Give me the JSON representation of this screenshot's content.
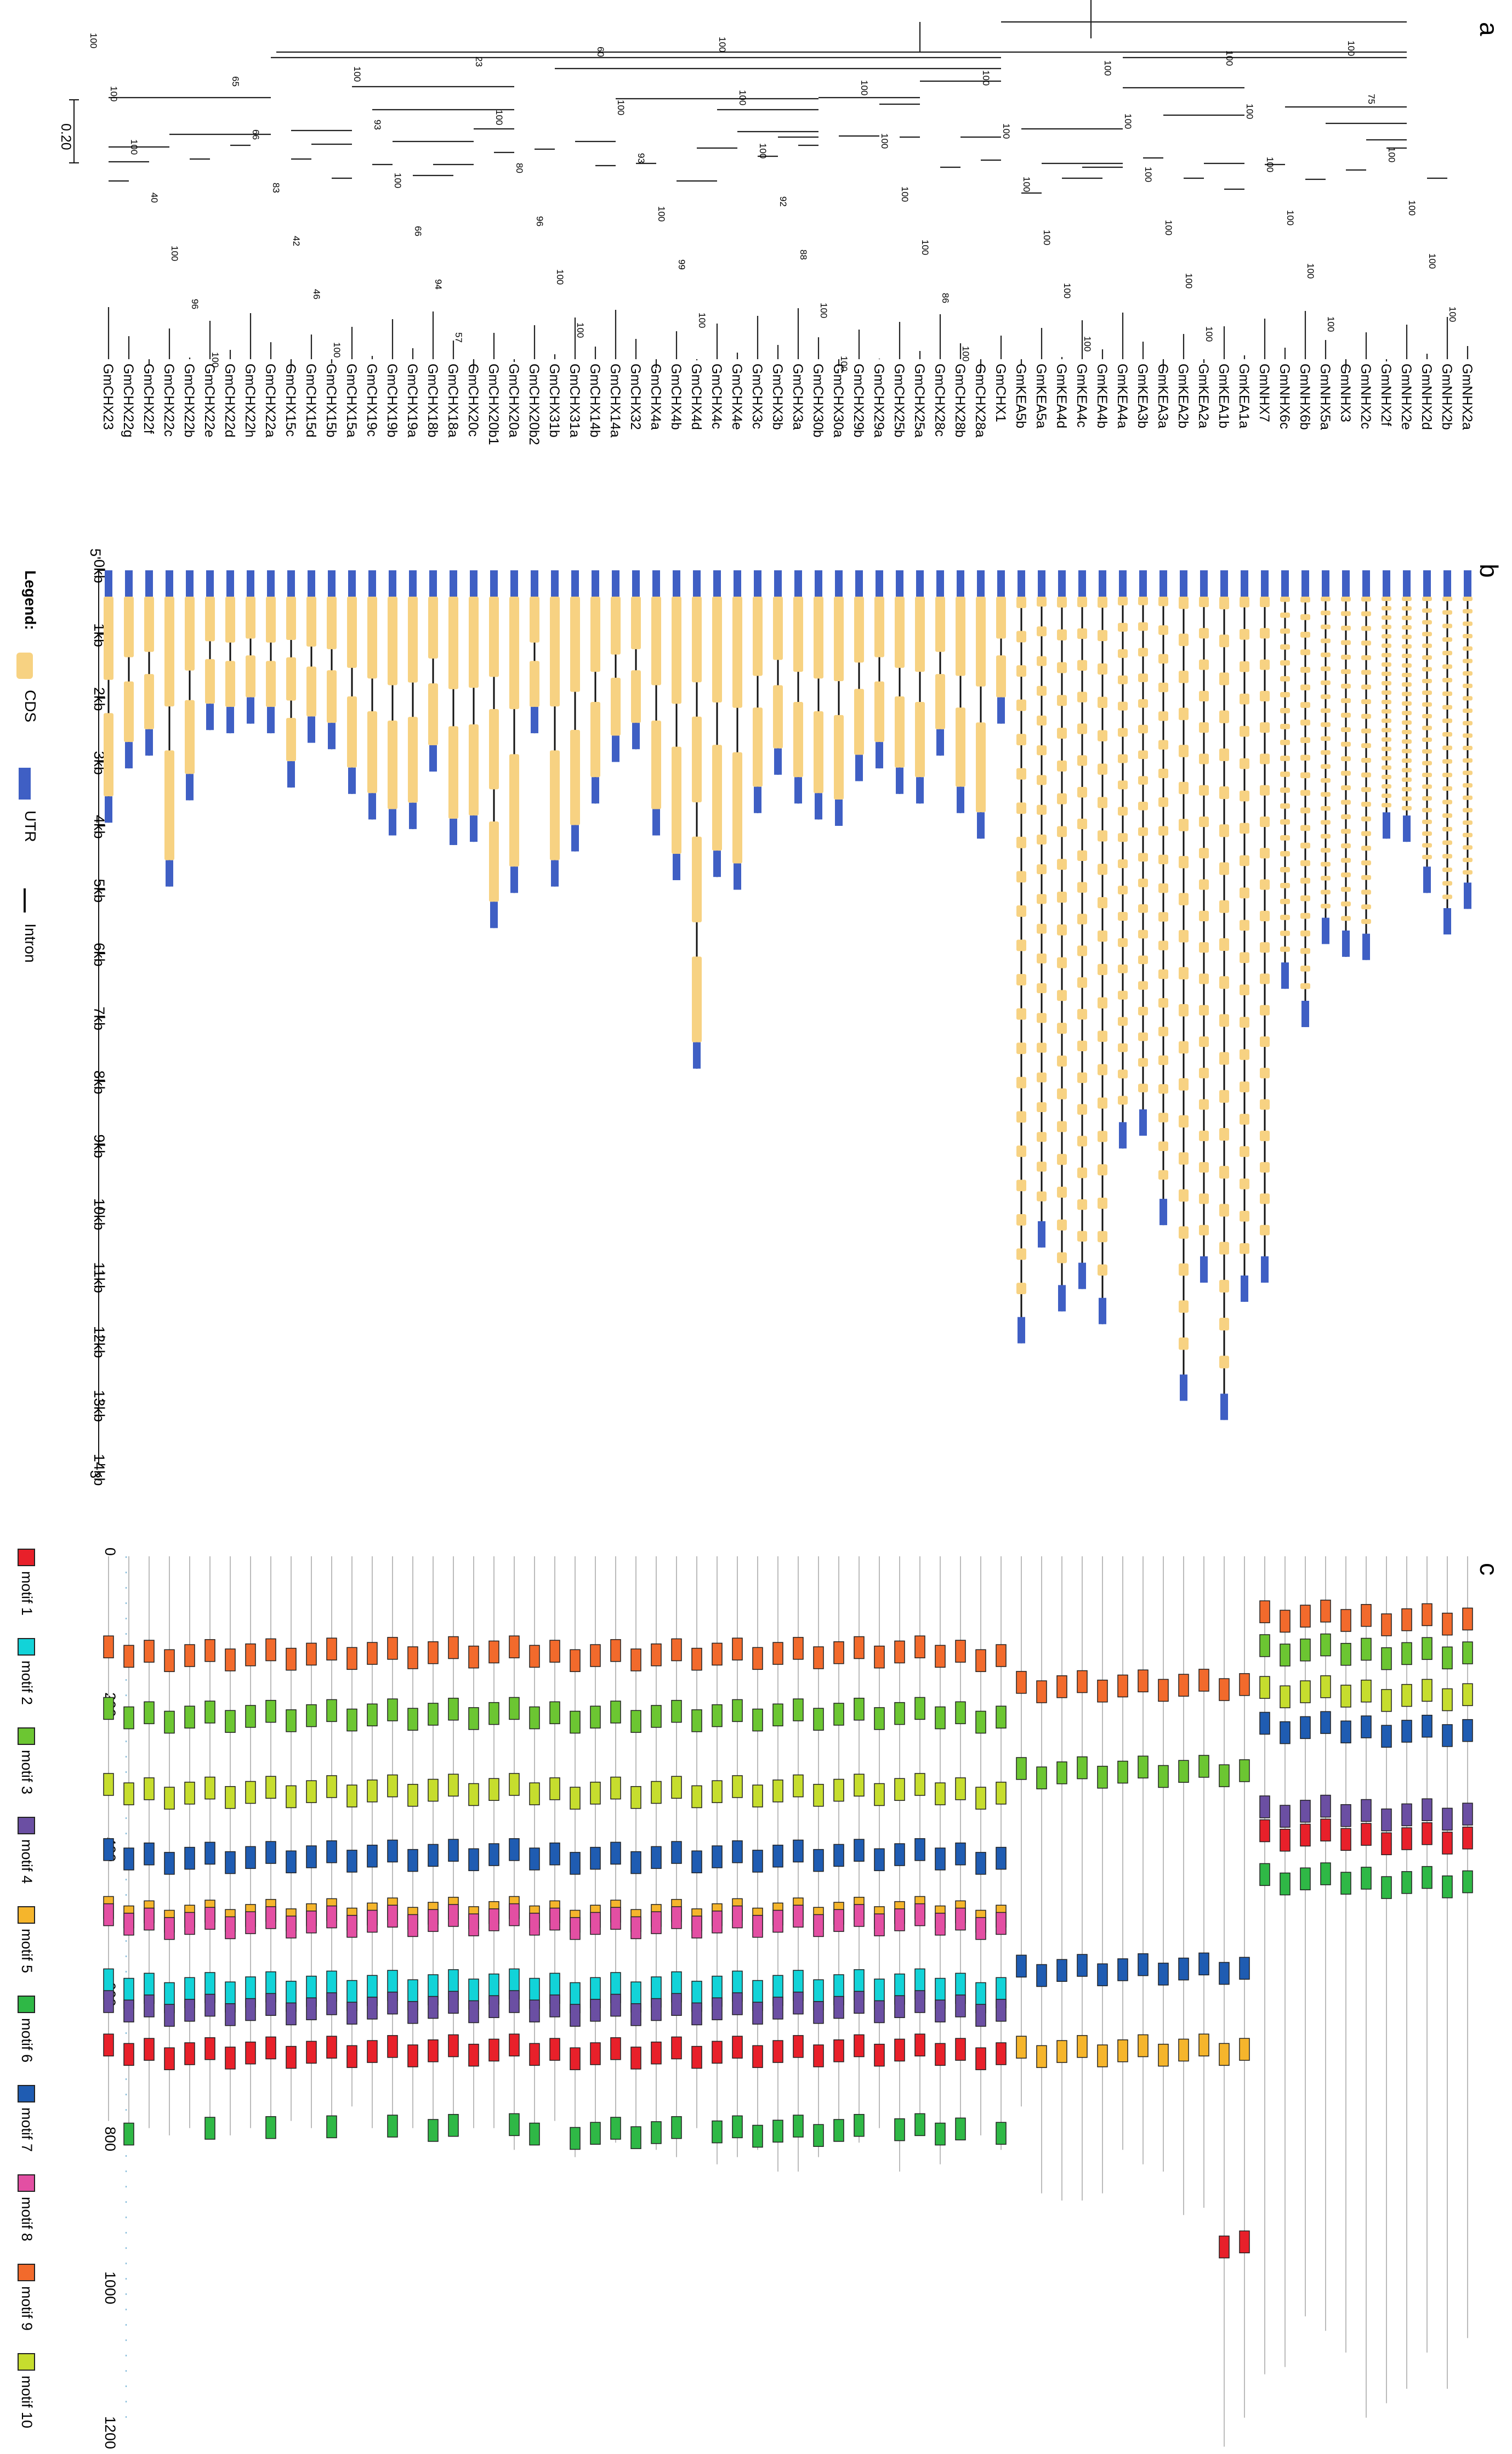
{
  "panels": {
    "a": "a",
    "b": "b",
    "c": "c"
  },
  "tree": {
    "scale_label": "0.20",
    "taxa": [
      "GmCHX23",
      "GmCHX22g",
      "GmCHX22f",
      "GmCHX22c",
      "GmCHX22b",
      "GmCHX22e",
      "GmCHX22d",
      "GmCHX22h",
      "GmCHX22a",
      "GmCHX15c",
      "GmCHX15d",
      "GmCHX15b",
      "GmCHX15a",
      "GmCHX19c",
      "GmCHX19b",
      "GmCHX19a",
      "GmCHX18b",
      "GmCHX18a",
      "GmCHX20c",
      "GmCHX20b1",
      "GmCHX20a",
      "GmCHX20b2",
      "GmCHX31b",
      "GmCHX31a",
      "GmCHX14b",
      "GmCHX14a",
      "GmCHX32",
      "GmCHX4a",
      "GmCHX4b",
      "GmCHX4d",
      "GmCHX4c",
      "GmCHX4e",
      "GmCHX3c",
      "GmCHX3b",
      "GmCHX3a",
      "GmCHX30b",
      "GmCHX30a",
      "GmCHX29b",
      "GmCHX29a",
      "GmCHX25b",
      "GmCHX25a",
      "GmCHX28c",
      "GmCHX28b",
      "GmCHX28a",
      "GmCHX1",
      "GmKEA5b",
      "GmKEA5a",
      "GmKEA4d",
      "GmKEA4c",
      "GmKEA4b",
      "GmKEA4a",
      "GmKEA3b",
      "GmKEA3a",
      "GmKEA2b",
      "GmKEA2a",
      "GmKEA1b",
      "GmKEA1a",
      "GmNHX7",
      "GmNHX6c",
      "GmNHX6b",
      "GmNHX5a",
      "GmNHX3",
      "GmNHX2c",
      "GmNHX2f",
      "GmNHX2e",
      "GmNHX2d",
      "GmNHX2b",
      "GmNHX2a"
    ],
    "bootstrap": [
      "100",
      "100",
      "100",
      "40",
      "100",
      "96",
      "100",
      "65",
      "66",
      "83",
      "42",
      "46",
      "100",
      "100",
      "93",
      "100",
      "66",
      "94",
      "57",
      "23",
      "100",
      "80",
      "96",
      "100",
      "100",
      "60",
      "100",
      "93",
      "100",
      "99",
      "100",
      "100",
      "100",
      "100",
      "92",
      "88",
      "100",
      "100",
      "100",
      "100",
      "100",
      "100",
      "86",
      "100",
      "100",
      "100",
      "100",
      "100",
      "100",
      "100",
      "100",
      "100",
      "100",
      "100",
      "100",
      "100",
      "100",
      "100",
      "100",
      "100",
      "100",
      "100",
      "100",
      "75",
      "100",
      "100",
      "100",
      "100"
    ]
  },
  "gene_structure": {
    "five_prime": "5'",
    "three_prime": "3'",
    "axis_ticks": [
      "0kb",
      "1kb",
      "2kb",
      "3kb",
      "4kb",
      "5kb",
      "6kb",
      "7kb",
      "8kb",
      "9kb",
      "10kb",
      "11kb",
      "12kb",
      "13kb",
      "14kb"
    ],
    "legend": {
      "title": "Legend:",
      "cds": "CDS",
      "utr": "UTR",
      "intron": "Intron"
    },
    "colors": {
      "cds": "#f7d282",
      "utr": "#3f5fc4",
      "intron": "#111111"
    },
    "gene_lengths_kb": [
      3.95,
      3.1,
      2.9,
      4.95,
      3.6,
      2.5,
      2.55,
      2.4,
      2.55,
      3.4,
      2.7,
      2.8,
      3.5,
      3.9,
      4.15,
      4.05,
      3.15,
      4.3,
      4.25,
      5.6,
      5.05,
      2.55,
      4.95,
      4.4,
      3.65,
      3.0,
      2.8,
      4.15,
      4.85,
      7.8,
      4.8,
      5.0,
      3.8,
      3.2,
      3.65,
      3.9,
      4.0,
      3.3,
      3.1,
      3.5,
      3.65,
      2.9,
      3.8,
      4.2,
      2.4,
      12.1,
      10.6,
      11.6,
      11.25,
      11.8,
      9.05,
      8.85,
      10.25,
      13.0,
      11.15,
      13.3,
      11.45,
      11.15,
      6.55,
      7.15,
      5.85,
      6.05,
      6.1,
      4.2,
      4.25,
      5.05,
      5.7,
      5.3
    ],
    "gene_intron_counts": [
      1,
      1,
      1,
      1,
      1,
      1,
      1,
      1,
      1,
      2,
      1,
      1,
      1,
      1,
      1,
      1,
      1,
      1,
      1,
      2,
      1,
      1,
      1,
      1,
      1,
      1,
      1,
      1,
      1,
      3,
      1,
      1,
      1,
      1,
      1,
      1,
      1,
      1,
      1,
      1,
      1,
      1,
      1,
      1,
      1,
      20,
      20,
      20,
      20,
      20,
      19,
      19,
      20,
      20,
      20,
      20,
      20,
      20,
      22,
      22,
      22,
      22,
      22,
      22,
      22,
      22,
      22,
      22
    ]
  },
  "motif_panel": {
    "axis_ticks": [
      "0",
      "200",
      "400",
      "600",
      "800",
      "1000",
      "1200"
    ],
    "legend": [
      {
        "label": "motif 1",
        "color": "#e8202a"
      },
      {
        "label": "motif 2",
        "color": "#12d3d8"
      },
      {
        "label": "motif 3",
        "color": "#6cc632"
      },
      {
        "label": "motif 4",
        "color": "#6b4fa3"
      },
      {
        "label": "motif 5",
        "color": "#f5b52c"
      },
      {
        "label": "motif 6",
        "color": "#2fb846"
      },
      {
        "label": "motif 7",
        "color": "#1f5cb2"
      },
      {
        "label": "motif 8",
        "color": "#e34fa3"
      },
      {
        "label": "motif 9",
        "color": "#f26a2c"
      },
      {
        "label": "motif 10",
        "color": "#c6dd2e"
      }
    ],
    "protein_lengths_aa": [
      780,
      800,
      790,
      800,
      790,
      800,
      800,
      790,
      800,
      780,
      790,
      800,
      760,
      790,
      800,
      790,
      800,
      800,
      790,
      790,
      820,
      800,
      780,
      830,
      800,
      810,
      810,
      820,
      830,
      790,
      840,
      830,
      820,
      850,
      850,
      830,
      800,
      810,
      790,
      850,
      800,
      840,
      800,
      800,
      820,
      760,
      880,
      890,
      890,
      880,
      820,
      840,
      850,
      910,
      900,
      1230,
      1190,
      1130,
      1120,
      1050,
      1070,
      1100,
      1190,
      1170,
      1150,
      1100,
      1150,
      1080
    ]
  }
}
